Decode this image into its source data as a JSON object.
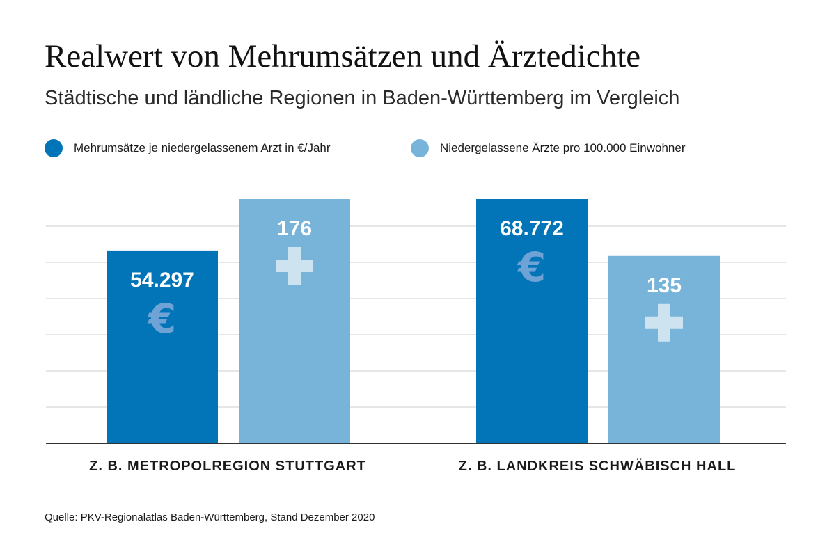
{
  "colors": {
    "series1": "#0275b8",
    "series2": "#78b4d9",
    "grid": "#cccccc",
    "baseline": "#333333",
    "icon": "#6fa3d6",
    "icon_light": "#cde3f0"
  },
  "header": {
    "title": "Realwert von Mehrumsätzen und Ärztedichte",
    "subtitle": "Städtische und ländliche Regionen in Baden-Württemberg im Vergleich"
  },
  "footer": {
    "source": "Quelle: PKV-Regionalatlas Baden-Württemberg, Stand Dezember 2020"
  },
  "chart_data": {
    "type": "bar",
    "title": "Realwert von Mehrumsätzen und Ärztedichte",
    "subtitle": "Städtische und ländliche Regionen in Baden-Württemberg im Vergleich",
    "categories": [
      "Z. B. METROPOLREGION STUTTGART",
      "Z. B. LANDKREIS SCHWÄBISCH HALL"
    ],
    "series": [
      {
        "name": "Mehrumsätze je niedergelassenem Arzt in €/Jahr",
        "values": [
          54297,
          68772
        ],
        "labels": [
          "54.297",
          "68.772"
        ],
        "color": "#0275b8",
        "icon": "euro-icon"
      },
      {
        "name": "Niedergelassene Ärzte pro 100.000 Einwohner",
        "values": [
          176,
          135
        ],
        "labels": [
          "176",
          "135"
        ],
        "color": "#78b4d9",
        "icon": "plus-icon"
      }
    ],
    "series_max": [
      68772,
      176
    ],
    "grid": true,
    "legend": "top-left",
    "xlabel": "",
    "ylabel": "",
    "source": "Quelle: PKV-Regionalatlas Baden-Württemberg, Stand Dezember 2020"
  }
}
